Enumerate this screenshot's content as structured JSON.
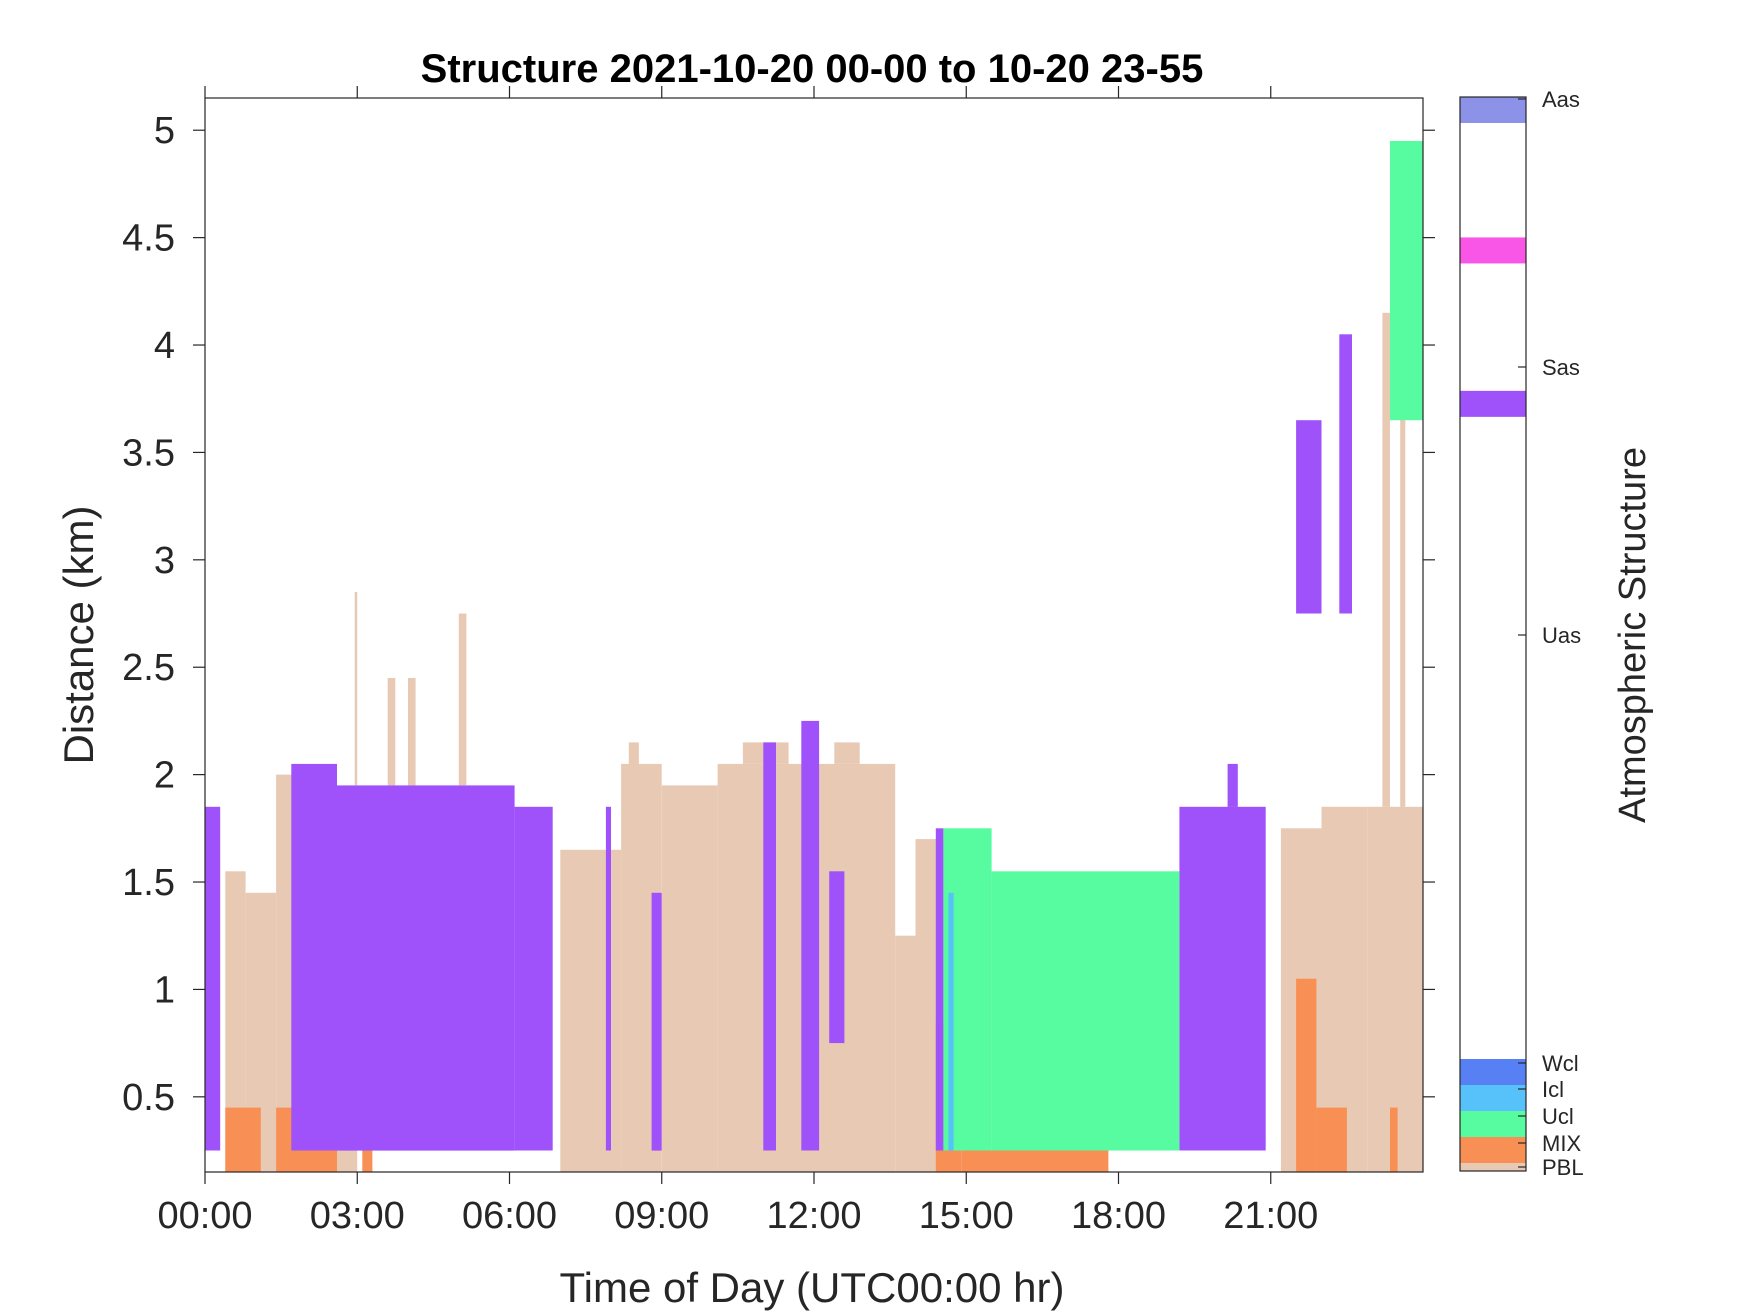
{
  "chart_data": {
    "type": "heatmap",
    "title": "Structure 2021-10-20 00-00 to 10-20 23-55",
    "xlabel": "Time of Day (UTC00:00 hr)",
    "ylabel": "Distance (km)",
    "xlim": [
      0,
      24
    ],
    "ylim": [
      0.15,
      5.15
    ],
    "x_ticks": [
      {
        "value": 0,
        "label": "00:00"
      },
      {
        "value": 3,
        "label": "03:00"
      },
      {
        "value": 6,
        "label": "06:00"
      },
      {
        "value": 9,
        "label": "09:00"
      },
      {
        "value": 12,
        "label": "12:00"
      },
      {
        "value": 15,
        "label": "15:00"
      },
      {
        "value": 18,
        "label": "18:00"
      },
      {
        "value": 21,
        "label": "21:00"
      }
    ],
    "y_ticks": [
      {
        "value": 0.5,
        "label": "0.5"
      },
      {
        "value": 1,
        "label": "1"
      },
      {
        "value": 1.5,
        "label": "1.5"
      },
      {
        "value": 2,
        "label": "2"
      },
      {
        "value": 2.5,
        "label": "2.5"
      },
      {
        "value": 3,
        "label": "3"
      },
      {
        "value": 3.5,
        "label": "3.5"
      },
      {
        "value": 4,
        "label": "4"
      },
      {
        "value": 4.5,
        "label": "4.5"
      },
      {
        "value": 5,
        "label": "5"
      }
    ],
    "colorbar": {
      "label": "Atmospheric Structure",
      "categories": [
        {
          "name": "PBL",
          "color": "#e8c9b4"
        },
        {
          "name": "MIX",
          "color": "#f88f55"
        },
        {
          "name": "Ucl",
          "color": "#57fba0"
        },
        {
          "name": "Icl",
          "color": "#56c2f9"
        },
        {
          "name": "Wcl",
          "color": "#5680f4"
        },
        {
          "name": "Uas",
          "color": "#9f52fa"
        },
        {
          "name": "Sas",
          "color": "#f956e8"
        },
        {
          "name": "Aas",
          "color": "#8c92e8"
        }
      ]
    },
    "blocks": [
      {
        "cat": "PBL",
        "x": [
          0.4,
          0.8
        ],
        "y": [
          0.15,
          1.55
        ]
      },
      {
        "cat": "PBL",
        "x": [
          0.8,
          1.4
        ],
        "y": [
          0.15,
          1.45
        ]
      },
      {
        "cat": "PBL",
        "x": [
          1.4,
          1.75
        ],
        "y": [
          0.15,
          2.0
        ]
      },
      {
        "cat": "PBL",
        "x": [
          1.75,
          3.0
        ],
        "y": [
          0.15,
          1.3
        ]
      },
      {
        "cat": "PBL",
        "x": [
          2.95,
          3.0
        ],
        "y": [
          1.95,
          2.85
        ]
      },
      {
        "cat": "PBL",
        "x": [
          3.6,
          3.75
        ],
        "y": [
          1.95,
          2.45
        ]
      },
      {
        "cat": "PBL",
        "x": [
          4.0,
          4.15
        ],
        "y": [
          1.95,
          2.45
        ]
      },
      {
        "cat": "PBL",
        "x": [
          5.0,
          5.15
        ],
        "y": [
          1.95,
          2.75
        ]
      },
      {
        "cat": "PBL",
        "x": [
          7.0,
          8.2
        ],
        "y": [
          0.15,
          1.65
        ]
      },
      {
        "cat": "PBL",
        "x": [
          8.2,
          9.0
        ],
        "y": [
          0.15,
          2.05
        ]
      },
      {
        "cat": "PBL",
        "x": [
          8.35,
          8.55
        ],
        "y": [
          2.0,
          2.15
        ]
      },
      {
        "cat": "PBL",
        "x": [
          9.0,
          10.1
        ],
        "y": [
          0.15,
          1.95
        ]
      },
      {
        "cat": "PBL",
        "x": [
          10.1,
          13.6
        ],
        "y": [
          0.15,
          2.05
        ]
      },
      {
        "cat": "PBL",
        "x": [
          10.6,
          11.5
        ],
        "y": [
          2.05,
          2.15
        ]
      },
      {
        "cat": "PBL",
        "x": [
          12.4,
          12.9
        ],
        "y": [
          2.05,
          2.15
        ]
      },
      {
        "cat": "PBL",
        "x": [
          13.6,
          14.0
        ],
        "y": [
          0.15,
          1.25
        ]
      },
      {
        "cat": "PBL",
        "x": [
          14.0,
          14.6
        ],
        "y": [
          0.15,
          1.7
        ]
      },
      {
        "cat": "PBL",
        "x": [
          21.2,
          22.0
        ],
        "y": [
          0.15,
          1.75
        ]
      },
      {
        "cat": "PBL",
        "x": [
          22.0,
          22.9
        ],
        "y": [
          0.15,
          1.85
        ]
      },
      {
        "cat": "PBL",
        "x": [
          22.9,
          24.0
        ],
        "y": [
          0.15,
          1.85
        ]
      },
      {
        "cat": "PBL",
        "x": [
          23.2,
          23.35
        ],
        "y": [
          1.85,
          4.15
        ]
      },
      {
        "cat": "PBL",
        "x": [
          23.55,
          23.65
        ],
        "y": [
          1.85,
          4.15
        ]
      },
      {
        "cat": "MIX",
        "x": [
          0.4,
          1.1
        ],
        "y": [
          0.15,
          0.45
        ]
      },
      {
        "cat": "MIX",
        "x": [
          1.4,
          2.6
        ],
        "y": [
          0.15,
          0.45
        ]
      },
      {
        "cat": "MIX",
        "x": [
          3.1,
          3.3
        ],
        "y": [
          0.15,
          0.35
        ]
      },
      {
        "cat": "MIX",
        "x": [
          14.4,
          14.9
        ],
        "y": [
          0.15,
          0.85
        ]
      },
      {
        "cat": "MIX",
        "x": [
          14.9,
          17.8
        ],
        "y": [
          0.15,
          0.25
        ]
      },
      {
        "cat": "MIX",
        "x": [
          16.55,
          16.65
        ],
        "y": [
          0.15,
          1.35
        ]
      },
      {
        "cat": "MIX",
        "x": [
          21.5,
          21.9
        ],
        "y": [
          0.15,
          1.05
        ]
      },
      {
        "cat": "MIX",
        "x": [
          21.9,
          22.5
        ],
        "y": [
          0.15,
          0.45
        ]
      },
      {
        "cat": "MIX",
        "x": [
          23.35,
          23.5
        ],
        "y": [
          0.15,
          0.45
        ]
      },
      {
        "cat": "Uas",
        "x": [
          0.0,
          0.3
        ],
        "y": [
          0.25,
          1.85
        ]
      },
      {
        "cat": "Uas",
        "x": [
          1.7,
          2.6
        ],
        "y": [
          0.25,
          2.05
        ]
      },
      {
        "cat": "Uas",
        "x": [
          2.6,
          6.1
        ],
        "y": [
          0.25,
          1.95
        ]
      },
      {
        "cat": "Uas",
        "x": [
          6.1,
          6.85
        ],
        "y": [
          0.25,
          1.85
        ]
      },
      {
        "cat": "Uas",
        "x": [
          7.9,
          8.0
        ],
        "y": [
          0.25,
          1.85
        ]
      },
      {
        "cat": "Uas",
        "x": [
          8.8,
          9.0
        ],
        "y": [
          0.25,
          1.45
        ]
      },
      {
        "cat": "Uas",
        "x": [
          11.0,
          11.25
        ],
        "y": [
          0.25,
          2.15
        ]
      },
      {
        "cat": "Uas",
        "x": [
          11.75,
          12.1
        ],
        "y": [
          0.25,
          2.25
        ]
      },
      {
        "cat": "Uas",
        "x": [
          12.3,
          12.6
        ],
        "y": [
          0.75,
          1.55
        ]
      },
      {
        "cat": "Uas",
        "x": [
          14.4,
          14.55
        ],
        "y": [
          0.25,
          1.75
        ]
      },
      {
        "cat": "Uas",
        "x": [
          19.2,
          20.9
        ],
        "y": [
          0.25,
          1.85
        ]
      },
      {
        "cat": "Uas",
        "x": [
          20.15,
          20.35
        ],
        "y": [
          1.85,
          2.05
        ]
      },
      {
        "cat": "Uas",
        "x": [
          21.5,
          22.0
        ],
        "y": [
          2.75,
          3.65
        ]
      },
      {
        "cat": "Uas",
        "x": [
          22.35,
          22.6
        ],
        "y": [
          2.75,
          4.05
        ]
      },
      {
        "cat": "Ucl",
        "x": [
          14.55,
          15.5
        ],
        "y": [
          0.25,
          1.75
        ]
      },
      {
        "cat": "Ucl",
        "x": [
          15.5,
          19.2
        ],
        "y": [
          0.25,
          1.55
        ]
      },
      {
        "cat": "Ucl",
        "x": [
          23.35,
          24.0
        ],
        "y": [
          3.65,
          4.95
        ]
      },
      {
        "cat": "Icl",
        "x": [
          14.65,
          14.75
        ],
        "y": [
          0.25,
          1.45
        ]
      }
    ]
  }
}
